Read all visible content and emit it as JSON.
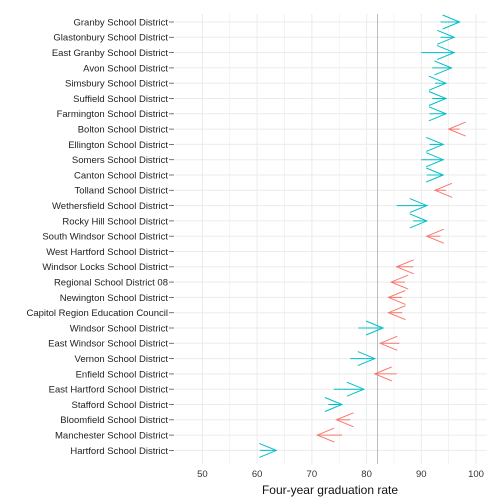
{
  "chart_data": {
    "type": "arrow",
    "xlabel": "Four-year graduation rate",
    "xlim": [
      45,
      102
    ],
    "xticks": [
      50,
      60,
      70,
      80,
      90,
      100
    ],
    "reference_line": 82,
    "grid": true,
    "colors": {
      "decrease": "#F8766D",
      "increase": "#00BFC4",
      "reference": "#bdbdbd",
      "grid": "#ebebeb"
    },
    "districts": [
      {
        "name": "Granby School District",
        "from": 93.5,
        "to": 97,
        "direction": "increase"
      },
      {
        "name": "Glastonbury School District",
        "from": 93.5,
        "to": 96,
        "direction": "increase"
      },
      {
        "name": "East Granby School District",
        "from": 90,
        "to": 96,
        "direction": "increase"
      },
      {
        "name": "Avon School District",
        "from": 92,
        "to": 95.5,
        "direction": "increase"
      },
      {
        "name": "Simsbury School District",
        "from": 92.5,
        "to": 94.5,
        "direction": "increase"
      },
      {
        "name": "Suffield School District",
        "from": 92,
        "to": 94.5,
        "direction": "increase"
      },
      {
        "name": "Farmington School District",
        "from": 91.5,
        "to": 94.5,
        "direction": "increase"
      },
      {
        "name": "Bolton School District",
        "from": 97,
        "to": 95,
        "direction": "decrease"
      },
      {
        "name": "Ellington School District",
        "from": 91.5,
        "to": 94,
        "direction": "increase"
      },
      {
        "name": "Somers School District",
        "from": 90,
        "to": 94,
        "direction": "increase"
      },
      {
        "name": "Canton School District",
        "from": 91,
        "to": 94,
        "direction": "increase"
      },
      {
        "name": "Tolland School District",
        "from": 94.5,
        "to": 92.5,
        "direction": "decrease"
      },
      {
        "name": "Wethersfield School District",
        "from": 85.5,
        "to": 91,
        "direction": "increase"
      },
      {
        "name": "Rocky Hill School District",
        "from": 88.5,
        "to": 91,
        "direction": "increase"
      },
      {
        "name": "South Windsor School District",
        "from": 93.5,
        "to": 91,
        "direction": "decrease"
      },
      {
        "name": "West Hartford School District",
        "from": null,
        "to": null,
        "direction": "none"
      },
      {
        "name": "Windsor Locks School District",
        "from": 88.5,
        "to": 85.5,
        "direction": "decrease"
      },
      {
        "name": "Regional School District 08",
        "from": 87,
        "to": 84.5,
        "direction": "decrease"
      },
      {
        "name": "Newington School District",
        "from": 86.5,
        "to": 84,
        "direction": "decrease"
      },
      {
        "name": "Capitol Region Education Council",
        "from": 86.5,
        "to": 84,
        "direction": "decrease"
      },
      {
        "name": "Windsor School District",
        "from": 78.5,
        "to": 83,
        "direction": "increase"
      },
      {
        "name": "East Windsor School District",
        "from": 86,
        "to": 82.5,
        "direction": "decrease"
      },
      {
        "name": "Vernon School District",
        "from": 77,
        "to": 81.5,
        "direction": "increase"
      },
      {
        "name": "Enfield School District",
        "from": 85.5,
        "to": 81.5,
        "direction": "decrease"
      },
      {
        "name": "East Hartford School District",
        "from": 74,
        "to": 79.5,
        "direction": "increase"
      },
      {
        "name": "Stafford School District",
        "from": 73,
        "to": 75.5,
        "direction": "increase"
      },
      {
        "name": "Bloomfield School District",
        "from": 77,
        "to": 74.5,
        "direction": "decrease"
      },
      {
        "name": "Manchester School District",
        "from": 75.5,
        "to": 71,
        "direction": "decrease"
      },
      {
        "name": "Hartford School District",
        "from": 60.5,
        "to": 63.5,
        "direction": "increase"
      }
    ]
  }
}
